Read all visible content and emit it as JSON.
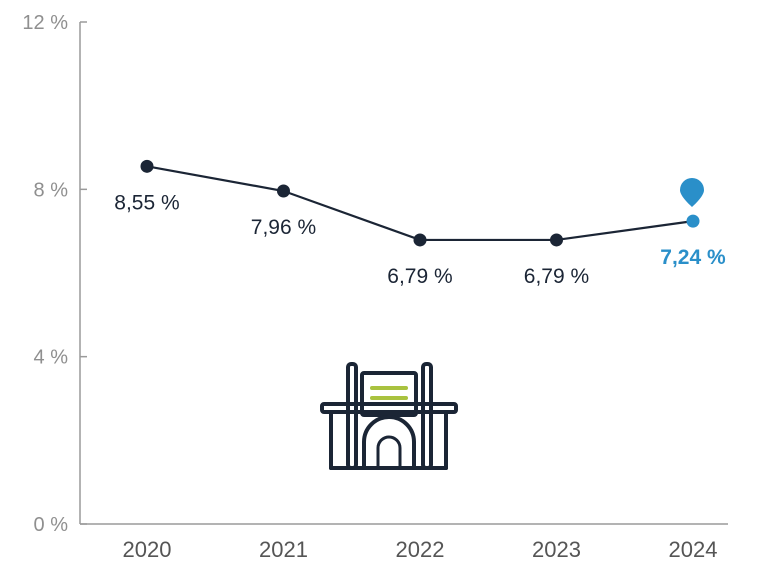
{
  "chart_data": {
    "type": "line",
    "categories": [
      "2020",
      "2021",
      "2022",
      "2023",
      "2024"
    ],
    "values": [
      8.55,
      7.96,
      6.79,
      6.79,
      7.24
    ],
    "value_labels": [
      "8,55 %",
      "7,96 %",
      "6,79 %",
      "6,79 %",
      "7,24 %"
    ],
    "highlight_index": 4,
    "yticks": [
      "0 %",
      "4 %",
      "8 %",
      "12 %"
    ],
    "ytick_values": [
      0,
      4,
      8,
      12
    ],
    "ylim": [
      0,
      12
    ],
    "title": "",
    "xlabel": "",
    "ylabel": "",
    "grid": false,
    "legend": "none"
  },
  "colors": {
    "line": "#1b2535",
    "highlight": "#2a8fc9",
    "axis": "#9a9a9a",
    "icon_accent": "#a9c23f",
    "icon_stroke": "#1b2535"
  },
  "icons": {
    "illustration": "building-icon",
    "highlight_marker": "map-pin-icon"
  }
}
